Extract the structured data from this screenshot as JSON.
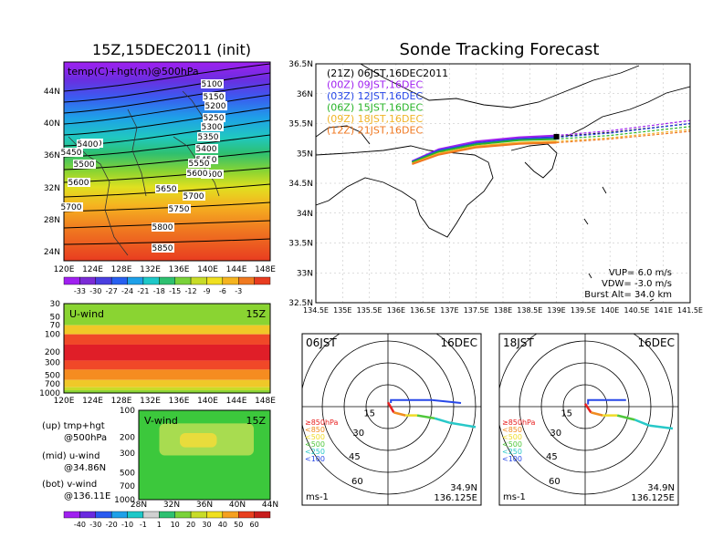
{
  "left_title": "15Z,15DEC2011 (init)",
  "right_title": "Sonde Tracking Forecast",
  "top_map": {
    "inset_label": "temp(C)+hgt(m)@500hPa",
    "lat_ticks": [
      "44N",
      "40N",
      "36N",
      "32N",
      "28N",
      "24N"
    ],
    "lon_ticks": [
      "120E",
      "124E",
      "128E",
      "132E",
      "136E",
      "140E",
      "144E",
      "148E"
    ],
    "contour_labels": [
      "5100",
      "5150",
      "5200",
      "5250",
      "5300",
      "5350",
      "5400",
      "5450",
      "5500",
      "5550",
      "5600",
      "5650",
      "5700",
      "5750",
      "5800",
      "5850",
      "5150",
      "5400",
      "5450",
      "5500",
      "5600",
      "5700"
    ],
    "colorbar_ticks": [
      "-33",
      "-30",
      "-27",
      "-24",
      "-21",
      "-18",
      "-15",
      "-12",
      "-9",
      "-6",
      "-3"
    ],
    "colorbar_colors": [
      "#a020f0",
      "#7b2cd6",
      "#4a3fe0",
      "#2860f0",
      "#1ea0e8",
      "#1ec8c8",
      "#2ec070",
      "#7ad23a",
      "#c8dc28",
      "#f0e020",
      "#f5b420",
      "#f07a20",
      "#e83c20"
    ]
  },
  "uwind": {
    "label": "U-wind",
    "time": "15Z",
    "y_ticks": [
      "30",
      "50",
      "70",
      "100",
      "200",
      "300",
      "500",
      "700",
      "1000"
    ],
    "x_ticks": [
      "120E",
      "124E",
      "128E",
      "132E",
      "136E",
      "140E",
      "144E",
      "148E"
    ]
  },
  "vwind": {
    "label": "V-wind",
    "time": "15Z",
    "y_ticks": [
      "100",
      "200",
      "300",
      "500",
      "700",
      "1000"
    ],
    "x_ticks": [
      "28N",
      "32N",
      "36N",
      "40N",
      "44N"
    ],
    "colorbar_ticks": [
      "-40",
      "-30",
      "-20",
      "-10",
      "-1",
      "1",
      "10",
      "20",
      "30",
      "40",
      "50",
      "60"
    ],
    "colorbar_colors": [
      "#a020f0",
      "#6a2ae0",
      "#2a5af0",
      "#1ea0e8",
      "#1ec8c8",
      "#d0d0d0",
      "#2ec070",
      "#7ad23a",
      "#c8dc28",
      "#f0e020",
      "#f5a020",
      "#e84020",
      "#c81e1e"
    ]
  },
  "legend_notes": {
    "up_1": "(up) tmp+hgt",
    "up_2": "@500hPa",
    "mid_1": "(mid) u-wind",
    "mid_2": "@34.86N",
    "bot_1": "(bot) v-wind",
    "bot_2": "@136.11E"
  },
  "track_map": {
    "lat_ticks": [
      "36.5N",
      "36N",
      "35.5N",
      "35N",
      "34.5N",
      "34N",
      "33.5N",
      "33N",
      "32.5N"
    ],
    "lon_ticks": [
      "134.5E",
      "135E",
      "135.5E",
      "136E",
      "136.5E",
      "137E",
      "137.5E",
      "138E",
      "138.5E",
      "139E",
      "139.5E",
      "140E",
      "140.5E",
      "141E",
      "141.5E"
    ],
    "legend": [
      {
        "text": "(21Z) 06JST,16DEC2011",
        "color": "#000000"
      },
      {
        "text": "(00Z) 09JST,16DEC",
        "color": "#a020f0"
      },
      {
        "text": "(03Z) 12JST,16DEC",
        "color": "#2848e8"
      },
      {
        "text": "(06Z) 15JST,16DEC",
        "color": "#28b428"
      },
      {
        "text": "(09Z) 18JST,16DEC",
        "color": "#f0b428"
      },
      {
        "text": "(12Z) 21JST,16DEC",
        "color": "#f07820"
      }
    ],
    "vup": "VUP= 6.0 m/s",
    "vdw": "VDW= -3.0 m/s",
    "burst": "Burst Alt= 34.0 km"
  },
  "polar_left": {
    "time": "06JST",
    "date": "16DEC",
    "ring_labels": [
      "15",
      "30",
      "45",
      "60"
    ],
    "unit": "ms-1",
    "lat": "34.9N",
    "lon": "136.125E",
    "pressure_legend": [
      {
        "text": "≥850hPa",
        "color": "#e82020"
      },
      {
        "text": "<850",
        "color": "#f08c20"
      },
      {
        "text": "<500",
        "color": "#f0dc28"
      },
      {
        "text": "<500",
        "color": "#50c83c"
      },
      {
        "text": "<250",
        "color": "#28c8c8"
      },
      {
        "text": "<100",
        "color": "#2848e8"
      }
    ]
  },
  "polar_right": {
    "time": "18JST",
    "date": "16DEC",
    "ring_labels": [
      "15",
      "30",
      "45",
      "60"
    ],
    "unit": "ms-1",
    "lat": "34.9N",
    "lon": "136.125E",
    "pressure_legend": [
      {
        "text": "≥850hPa",
        "color": "#e82020"
      },
      {
        "text": "<850",
        "color": "#f08c20"
      },
      {
        "text": "<500",
        "color": "#f0dc28"
      },
      {
        "text": "<500",
        "color": "#50c83c"
      },
      {
        "text": "<250",
        "color": "#28c8c8"
      },
      {
        "text": "<100",
        "color": "#2848e8"
      }
    ]
  },
  "chart_data": [
    {
      "type": "heatmap",
      "title": "15Z,15DEC2011 (init)",
      "subtitle": "temp(C)+hgt(m)@500hPa",
      "x_range": [
        "120E",
        "148E"
      ],
      "y_range": [
        "24N",
        "44N"
      ],
      "contour_levels_m": [
        5100,
        5150,
        5200,
        5250,
        5300,
        5350,
        5400,
        5450,
        5500,
        5550,
        5600,
        5650,
        5700,
        5750,
        5800,
        5850
      ],
      "colorbar_C": [
        -33,
        -30,
        -27,
        -24,
        -21,
        -18,
        -15,
        -12,
        -9,
        -6,
        -3
      ]
    },
    {
      "type": "heatmap",
      "title": "U-wind",
      "subtitle": "15Z",
      "y_levels_hPa": [
        30,
        50,
        70,
        100,
        200,
        300,
        500,
        700,
        1000
      ],
      "x_range": [
        "120E",
        "148E"
      ],
      "bands": [
        {
          "from_hPa": 30,
          "to_hPa": 70,
          "value_ms": 10
        },
        {
          "from_hPa": 70,
          "to_hPa": 100,
          "value_ms": 30
        },
        {
          "from_hPa": 100,
          "to_hPa": 150,
          "value_ms": 50
        },
        {
          "from_hPa": 150,
          "to_hPa": 280,
          "value_ms": 60
        },
        {
          "from_hPa": 280,
          "to_hPa": 400,
          "value_ms": 50
        },
        {
          "from_hPa": 400,
          "to_hPa": 600,
          "value_ms": 40
        },
        {
          "from_hPa": 600,
          "to_hPa": 800,
          "value_ms": 30
        },
        {
          "from_hPa": 800,
          "to_hPa": 900,
          "value_ms": 20
        },
        {
          "from_hPa": 900,
          "to_hPa": 1000,
          "value_ms": 10
        }
      ]
    },
    {
      "type": "heatmap",
      "title": "V-wind",
      "subtitle": "15Z",
      "y_levels_hPa": [
        100,
        200,
        300,
        500,
        700,
        1000
      ],
      "x_range": [
        "28N",
        "44N"
      ],
      "background_ms": 1,
      "patches": [
        {
          "lat": [
            30.5,
            42
          ],
          "hPa": [
            140,
            320
          ],
          "value_ms": 10
        },
        {
          "lat": [
            33,
            37.5
          ],
          "hPa": [
            180,
            260
          ],
          "value_ms": 20
        }
      ]
    },
    {
      "type": "line",
      "title": "Sonde Tracking Forecast",
      "x_range": [
        134.5,
        141.5
      ],
      "y_range": [
        32.5,
        36.5
      ],
      "series": [
        {
          "name": "(21Z) 06JST,16DEC2011",
          "color": "#000000",
          "points": [
            [
              136.3,
              34.86
            ],
            [
              136.8,
              35.05
            ],
            [
              137.5,
              35.18
            ],
            [
              138.3,
              35.25
            ],
            [
              139.0,
              35.28
            ]
          ],
          "extension": [
            [
              139.0,
              35.28
            ],
            [
              140.0,
              35.35
            ],
            [
              141.5,
              35.5
            ]
          ]
        },
        {
          "name": "(00Z) 09JST,16DEC",
          "color": "#a020f0",
          "points": [
            [
              136.3,
              34.87
            ],
            [
              136.8,
              35.07
            ],
            [
              137.5,
              35.2
            ],
            [
              138.3,
              35.27
            ],
            [
              139.0,
              35.3
            ]
          ],
          "extension": [
            [
              139.0,
              35.3
            ],
            [
              140.0,
              35.38
            ],
            [
              141.5,
              35.55
            ]
          ]
        },
        {
          "name": "(03Z) 12JST,16DEC",
          "color": "#2848e8",
          "points": [
            [
              136.3,
              34.86
            ],
            [
              136.8,
              35.05
            ],
            [
              137.5,
              35.17
            ],
            [
              138.3,
              35.24
            ],
            [
              139.0,
              35.27
            ]
          ],
          "extension": [
            [
              139.0,
              35.27
            ],
            [
              140.0,
              35.34
            ],
            [
              141.5,
              35.5
            ]
          ]
        },
        {
          "name": "(06Z) 15JST,16DEC",
          "color": "#28b428",
          "points": [
            [
              136.3,
              34.85
            ],
            [
              136.8,
              35.03
            ],
            [
              137.5,
              35.15
            ],
            [
              138.3,
              35.22
            ],
            [
              139.0,
              35.24
            ]
          ],
          "extension": [
            [
              139.0,
              35.24
            ],
            [
              140.0,
              35.3
            ],
            [
              141.5,
              35.45
            ]
          ]
        },
        {
          "name": "(09Z) 18JST,16DEC",
          "color": "#f0b428",
          "points": [
            [
              136.3,
              34.83
            ],
            [
              136.8,
              35.0
            ],
            [
              137.5,
              35.12
            ],
            [
              138.3,
              35.18
            ],
            [
              139.0,
              35.2
            ]
          ],
          "extension": [
            [
              139.0,
              35.2
            ],
            [
              140.0,
              35.26
            ],
            [
              141.5,
              35.4
            ]
          ]
        },
        {
          "name": "(12Z) 21JST,16DEC",
          "color": "#f07820",
          "points": [
            [
              136.3,
              34.82
            ],
            [
              136.8,
              34.98
            ],
            [
              137.5,
              35.1
            ],
            [
              138.3,
              35.16
            ],
            [
              139.0,
              35.18
            ]
          ],
          "extension": [
            [
              139.0,
              35.18
            ],
            [
              140.0,
              35.24
            ],
            [
              141.5,
              35.37
            ]
          ]
        }
      ]
    },
    {
      "type": "line",
      "title": "06JST 16DEC",
      "ring_labels": [
        15,
        30,
        45,
        60
      ],
      "hodograph_uv": [
        [
          0,
          -3
        ],
        [
          4,
          4
        ],
        [
          12,
          6
        ],
        [
          20,
          6
        ],
        [
          32,
          8
        ],
        [
          42,
          11
        ],
        [
          60,
          14
        ]
      ],
      "upper_uv": [
        [
          2,
          10
        ],
        [
          2,
          8
        ],
        [
          30,
          8
        ],
        [
          50,
          10
        ]
      ]
    },
    {
      "type": "line",
      "title": "18JST 16DEC",
      "ring_labels": [
        15,
        30,
        45,
        60
      ],
      "hodograph_uv": [
        [
          0,
          -2
        ],
        [
          4,
          4
        ],
        [
          12,
          6
        ],
        [
          22,
          6
        ],
        [
          34,
          9
        ],
        [
          44,
          13
        ],
        [
          60,
          15
        ]
      ],
      "upper_uv": [
        [
          2,
          11
        ],
        [
          2,
          8
        ],
        [
          14,
          8
        ],
        [
          28,
          8
        ]
      ]
    }
  ]
}
